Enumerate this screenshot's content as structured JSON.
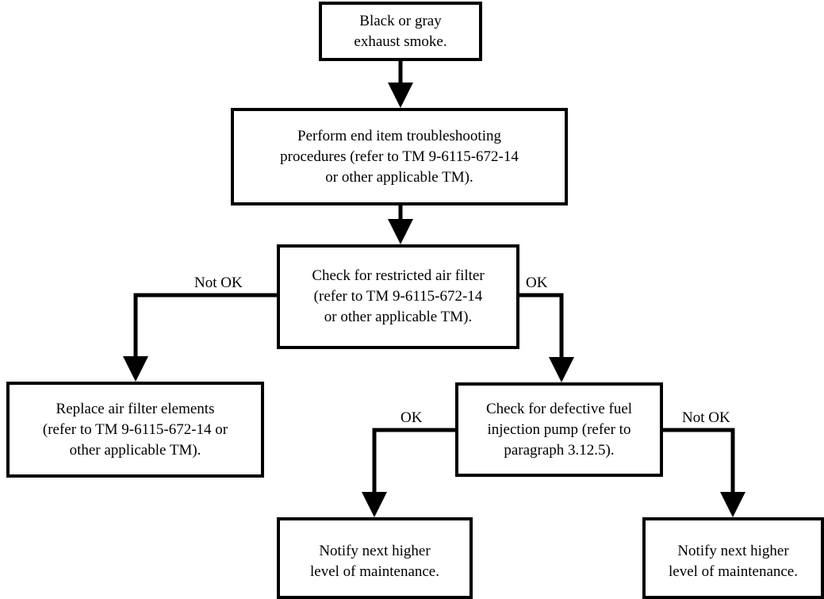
{
  "boxes": {
    "start": "Black or gray\nexhaust smoke.",
    "troubleshoot": "Perform end item troubleshooting\nprocedures (refer to TM 9-6115-672-14\nor other applicable TM).",
    "air_filter_check": "Check for restricted air filter\n(refer to TM 9-6115-672-14\nor other applicable TM).",
    "replace_air_filter": "Replace air filter elements\n(refer to TM 9-6115-672-14 or\nother applicable TM).",
    "fuel_pump_check": "Check for defective fuel\ninjection pump (refer to\nparagraph 3.12.5).",
    "notify_left": "Notify next higher\nlevel of maintenance.",
    "notify_right": "Notify next higher\nlevel of maintenance."
  },
  "edge_labels": {
    "air_filter_not_ok": "Not OK",
    "air_filter_ok": "OK",
    "fuel_pump_ok": "OK",
    "fuel_pump_not_ok": "Not OK"
  }
}
